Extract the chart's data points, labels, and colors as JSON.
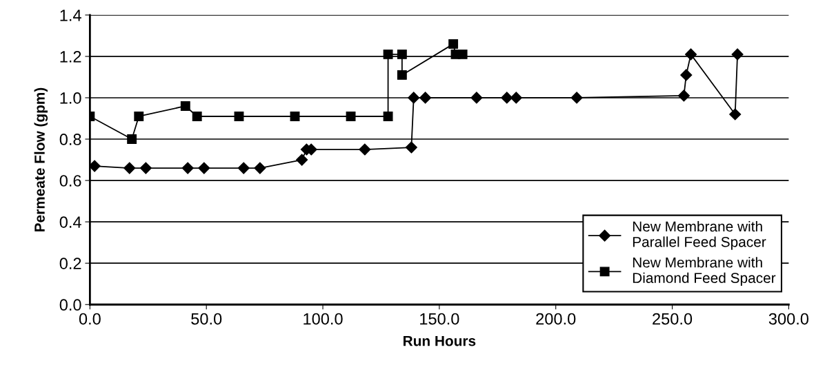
{
  "chart_data": {
    "type": "line",
    "xlabel": "Run Hours",
    "ylabel": "Permeate Flow (gpm)",
    "xlim": [
      0,
      300
    ],
    "ylim": [
      0,
      1.4
    ],
    "xticks": [
      {
        "value": 0,
        "label": "0.0"
      },
      {
        "value": 50,
        "label": "50.0"
      },
      {
        "value": 100,
        "label": "100.0"
      },
      {
        "value": 150,
        "label": "150.0"
      },
      {
        "value": 200,
        "label": "200.0"
      },
      {
        "value": 250,
        "label": "250.0"
      },
      {
        "value": 300,
        "label": "300.0"
      }
    ],
    "yticks": [
      {
        "value": 0,
        "label": "0.0"
      },
      {
        "value": 0.2,
        "label": "0.2"
      },
      {
        "value": 0.4,
        "label": "0.4"
      },
      {
        "value": 0.6,
        "label": "0.6"
      },
      {
        "value": 0.8,
        "label": "0.8"
      },
      {
        "value": 1.0,
        "label": "1.0"
      },
      {
        "value": 1.2,
        "label": "1.2"
      },
      {
        "value": 1.4,
        "label": "1.4"
      }
    ],
    "grid": "y",
    "legend": "lower right",
    "series": [
      {
        "name": "New Membrane with\nParallel Feed Spacer",
        "color": "#000000",
        "marker": "diamond",
        "x": [
          2,
          17,
          24,
          42,
          49,
          66,
          73,
          91,
          93,
          95,
          118,
          138,
          139,
          144,
          166,
          179,
          183,
          209,
          255,
          256,
          258,
          277,
          278
        ],
        "values": [
          0.67,
          0.66,
          0.66,
          0.66,
          0.66,
          0.66,
          0.66,
          0.7,
          0.75,
          0.75,
          0.75,
          0.76,
          1.0,
          1.0,
          1.0,
          1.0,
          1.0,
          1.0,
          1.01,
          1.11,
          1.21,
          0.92,
          1.21
        ]
      },
      {
        "name": "New Membrane with\nDiamond Feed Spacer",
        "color": "#000000",
        "marker": "square",
        "x": [
          0,
          18,
          21,
          41,
          46,
          64,
          88,
          112,
          128,
          128,
          134,
          134,
          156,
          157,
          160
        ],
        "values": [
          0.91,
          0.8,
          0.91,
          0.96,
          0.91,
          0.91,
          0.91,
          0.91,
          0.91,
          1.21,
          1.21,
          1.11,
          1.26,
          1.21,
          1.21
        ]
      }
    ]
  }
}
